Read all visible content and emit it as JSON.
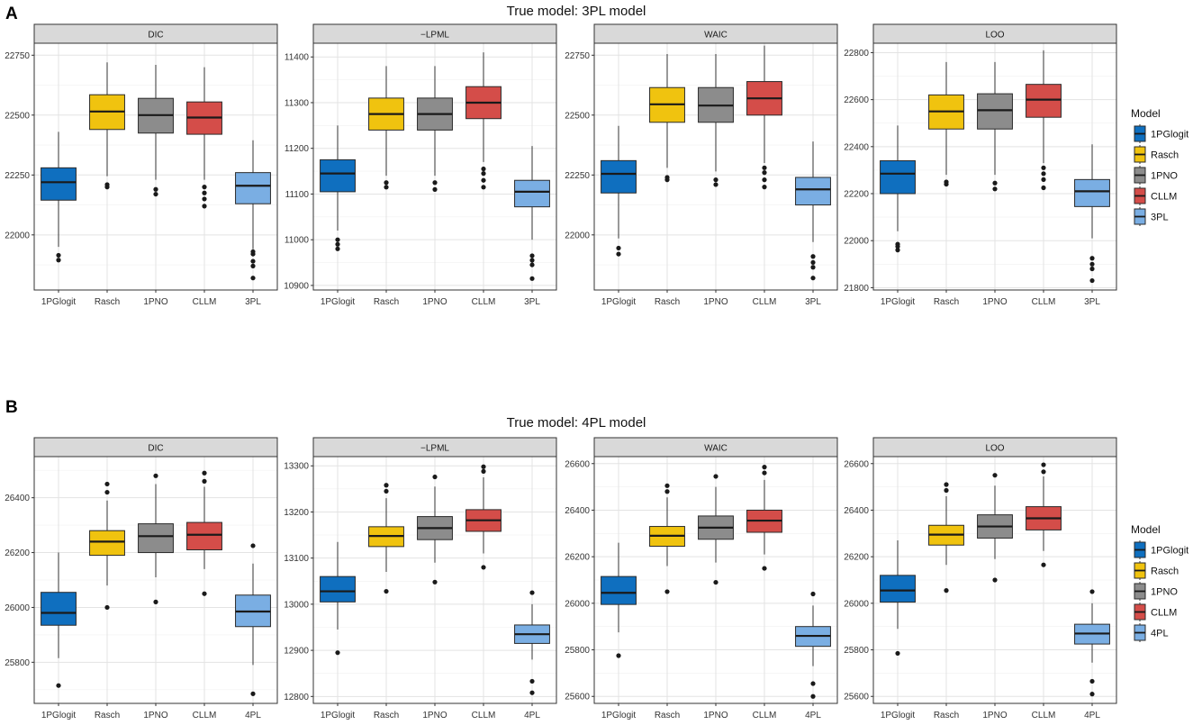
{
  "rows": [
    {
      "letter": "A",
      "title": "True model: 3PL model",
      "legend": {
        "title": "Model",
        "items": [
          {
            "label": "1PGlogit",
            "color": "#0f6fbf"
          },
          {
            "label": "Rasch",
            "color": "#f0c30f"
          },
          {
            "label": "1PNO",
            "color": "#8c8c8c"
          },
          {
            "label": "CLLM",
            "color": "#d44d49"
          },
          {
            "label": "3PL",
            "color": "#7aaee3"
          }
        ]
      }
    },
    {
      "letter": "B",
      "title": "True model: 4PL model",
      "legend": {
        "title": "Model",
        "items": [
          {
            "label": "1PGlogit",
            "color": "#0f6fbf"
          },
          {
            "label": "Rasch",
            "color": "#f0c30f"
          },
          {
            "label": "1PNO",
            "color": "#8c8c8c"
          },
          {
            "label": "CLLM",
            "color": "#d44d49"
          },
          {
            "label": "4PL",
            "color": "#7aaee3"
          }
        ]
      }
    }
  ],
  "chart_data": [
    {
      "type": "boxplot",
      "row": 0,
      "col": 0,
      "title": "DIC",
      "categories": [
        "1PGlogit",
        "Rasch",
        "1PNO",
        "CLLM",
        "3PL"
      ],
      "ylim": [
        21770,
        22800
      ],
      "yticks": [
        22000,
        22250,
        22500,
        22750
      ],
      "boxes": [
        {
          "lo": 21950,
          "q1": 22145,
          "med": 22220,
          "q3": 22280,
          "hi": 22430,
          "out": [
            21895,
            21915
          ]
        },
        {
          "lo": 22245,
          "q1": 22440,
          "med": 22515,
          "q3": 22585,
          "hi": 22720,
          "out": [
            22200,
            22210
          ]
        },
        {
          "lo": 22230,
          "q1": 22425,
          "med": 22500,
          "q3": 22570,
          "hi": 22710,
          "out": [
            22170,
            22190
          ]
        },
        {
          "lo": 22230,
          "q1": 22420,
          "med": 22490,
          "q3": 22555,
          "hi": 22700,
          "out": [
            22120,
            22150,
            22175,
            22200
          ]
        },
        {
          "lo": 21940,
          "q1": 22130,
          "med": 22205,
          "q3": 22260,
          "hi": 22395,
          "out": [
            21820,
            21870,
            21890,
            21920,
            21930
          ]
        }
      ]
    },
    {
      "type": "boxplot",
      "row": 0,
      "col": 1,
      "title": "−LPML",
      "categories": [
        "1PGlogit",
        "Rasch",
        "1PNO",
        "CLLM",
        "3PL"
      ],
      "ylim": [
        10890,
        11430
      ],
      "yticks": [
        10900,
        11000,
        11100,
        11200,
        11300,
        11400
      ],
      "boxes": [
        {
          "lo": 11020,
          "q1": 11105,
          "med": 11145,
          "q3": 11175,
          "hi": 11250,
          "out": [
            10980,
            10990,
            11000
          ]
        },
        {
          "lo": 11140,
          "q1": 11240,
          "med": 11275,
          "q3": 11310,
          "hi": 11380,
          "out": [
            11115,
            11125
          ]
        },
        {
          "lo": 11140,
          "q1": 11240,
          "med": 11275,
          "q3": 11310,
          "hi": 11380,
          "out": [
            11110,
            11125
          ]
        },
        {
          "lo": 11170,
          "q1": 11265,
          "med": 11300,
          "q3": 11335,
          "hi": 11410,
          "out": [
            11115,
            11130,
            11145,
            11155
          ]
        },
        {
          "lo": 11000,
          "q1": 11072,
          "med": 11105,
          "q3": 11130,
          "hi": 11205,
          "out": [
            10915,
            10945,
            10955,
            10965
          ]
        }
      ]
    },
    {
      "type": "boxplot",
      "row": 0,
      "col": 2,
      "title": "WAIC",
      "categories": [
        "1PGlogit",
        "Rasch",
        "1PNO",
        "CLLM",
        "3PL"
      ],
      "ylim": [
        21770,
        22800
      ],
      "yticks": [
        22000,
        22250,
        22500,
        22750
      ],
      "boxes": [
        {
          "lo": 21985,
          "q1": 22175,
          "med": 22255,
          "q3": 22310,
          "hi": 22455,
          "out": [
            21920,
            21945
          ]
        },
        {
          "lo": 22280,
          "q1": 22470,
          "med": 22545,
          "q3": 22615,
          "hi": 22755,
          "out": [
            22230,
            22240
          ]
        },
        {
          "lo": 22265,
          "q1": 22470,
          "med": 22540,
          "q3": 22615,
          "hi": 22755,
          "out": [
            22210,
            22230
          ]
        },
        {
          "lo": 22300,
          "q1": 22500,
          "med": 22570,
          "q3": 22640,
          "hi": 22790,
          "out": [
            22200,
            22230,
            22260,
            22280
          ]
        },
        {
          "lo": 21970,
          "q1": 22125,
          "med": 22190,
          "q3": 22240,
          "hi": 22390,
          "out": [
            21820,
            21865,
            21885,
            21910
          ]
        }
      ]
    },
    {
      "type": "boxplot",
      "row": 0,
      "col": 3,
      "title": "LOO",
      "categories": [
        "1PGlogit",
        "Rasch",
        "1PNO",
        "CLLM",
        "3PL"
      ],
      "ylim": [
        21790,
        22840
      ],
      "yticks": [
        21800,
        22000,
        22200,
        22400,
        22600,
        22800
      ],
      "boxes": [
        {
          "lo": 22040,
          "q1": 22200,
          "med": 22285,
          "q3": 22340,
          "hi": 22490,
          "out": [
            21960,
            21975,
            21985
          ]
        },
        {
          "lo": 22280,
          "q1": 22475,
          "med": 22550,
          "q3": 22620,
          "hi": 22760,
          "out": [
            22240,
            22250
          ]
        },
        {
          "lo": 22280,
          "q1": 22475,
          "med": 22555,
          "q3": 22625,
          "hi": 22760,
          "out": [
            22220,
            22245
          ]
        },
        {
          "lo": 22330,
          "q1": 22525,
          "med": 22600,
          "q3": 22665,
          "hi": 22810,
          "out": [
            22225,
            22260,
            22285,
            22310
          ]
        },
        {
          "lo": 22010,
          "q1": 22145,
          "med": 22210,
          "q3": 22260,
          "hi": 22410,
          "out": [
            21830,
            21880,
            21900,
            21925
          ]
        }
      ]
    },
    {
      "type": "boxplot",
      "row": 1,
      "col": 0,
      "title": "DIC",
      "categories": [
        "1PGlogit",
        "Rasch",
        "1PNO",
        "CLLM",
        "4PL"
      ],
      "ylim": [
        25650,
        26550
      ],
      "yticks": [
        25800,
        26000,
        26200,
        26400
      ],
      "boxes": [
        {
          "lo": 25815,
          "q1": 25935,
          "med": 25980,
          "q3": 26055,
          "hi": 26200,
          "out": [
            25715
          ]
        },
        {
          "lo": 26080,
          "q1": 26190,
          "med": 26240,
          "q3": 26280,
          "hi": 26390,
          "out": [
            26000,
            26420,
            26450
          ]
        },
        {
          "lo": 26110,
          "q1": 26200,
          "med": 26260,
          "q3": 26305,
          "hi": 26450,
          "out": [
            26020,
            26480
          ]
        },
        {
          "lo": 26140,
          "q1": 26210,
          "med": 26265,
          "q3": 26310,
          "hi": 26440,
          "out": [
            26050,
            26460,
            26490
          ]
        },
        {
          "lo": 25790,
          "q1": 25930,
          "med": 25985,
          "q3": 26045,
          "hi": 26160,
          "out": [
            25685,
            26225
          ]
        }
      ]
    },
    {
      "type": "boxplot",
      "row": 1,
      "col": 1,
      "title": "−LPML",
      "categories": [
        "1PGlogit",
        "Rasch",
        "1PNO",
        "CLLM",
        "4PL"
      ],
      "ylim": [
        12785,
        13320
      ],
      "yticks": [
        12800,
        12900,
        13000,
        13100,
        13200,
        13300
      ],
      "boxes": [
        {
          "lo": 12945,
          "q1": 13005,
          "med": 13028,
          "q3": 13060,
          "hi": 13135,
          "out": [
            12895
          ]
        },
        {
          "lo": 13070,
          "q1": 13125,
          "med": 13148,
          "q3": 13168,
          "hi": 13230,
          "out": [
            13028,
            13245,
            13258
          ]
        },
        {
          "lo": 13090,
          "q1": 13140,
          "med": 13165,
          "q3": 13190,
          "hi": 13255,
          "out": [
            13048,
            13276
          ]
        },
        {
          "lo": 13110,
          "q1": 13158,
          "med": 13182,
          "q3": 13205,
          "hi": 13275,
          "out": [
            13080,
            13288,
            13298
          ]
        },
        {
          "lo": 12880,
          "q1": 12915,
          "med": 12935,
          "q3": 12955,
          "hi": 13000,
          "out": [
            12808,
            12833,
            13025
          ]
        }
      ]
    },
    {
      "type": "boxplot",
      "row": 1,
      "col": 2,
      "title": "WAIC",
      "categories": [
        "1PGlogit",
        "Rasch",
        "1PNO",
        "CLLM",
        "4PL"
      ],
      "ylim": [
        25570,
        26630
      ],
      "yticks": [
        25600,
        25800,
        26000,
        26200,
        26400,
        26600
      ],
      "boxes": [
        {
          "lo": 25875,
          "q1": 25995,
          "med": 26045,
          "q3": 26115,
          "hi": 26260,
          "out": [
            25775
          ]
        },
        {
          "lo": 26160,
          "q1": 26245,
          "med": 26290,
          "q3": 26330,
          "hi": 26455,
          "out": [
            26050,
            26480,
            26505
          ]
        },
        {
          "lo": 26175,
          "q1": 26275,
          "med": 26325,
          "q3": 26375,
          "hi": 26500,
          "out": [
            26090,
            26545
          ]
        },
        {
          "lo": 26210,
          "q1": 26305,
          "med": 26355,
          "q3": 26400,
          "hi": 26530,
          "out": [
            26150,
            26560,
            26585
          ]
        },
        {
          "lo": 25730,
          "q1": 25815,
          "med": 25860,
          "q3": 25900,
          "hi": 25990,
          "out": [
            25600,
            25655,
            26040
          ]
        }
      ]
    },
    {
      "type": "boxplot",
      "row": 1,
      "col": 3,
      "title": "LOO",
      "categories": [
        "1PGlogit",
        "Rasch",
        "1PNO",
        "CLLM",
        "4PL"
      ],
      "ylim": [
        25570,
        26630
      ],
      "yticks": [
        25600,
        25800,
        26000,
        26200,
        26400,
        26600
      ],
      "boxes": [
        {
          "lo": 25890,
          "q1": 26005,
          "med": 26055,
          "q3": 26120,
          "hi": 26270,
          "out": [
            25785
          ]
        },
        {
          "lo": 26165,
          "q1": 26250,
          "med": 26295,
          "q3": 26335,
          "hi": 26460,
          "out": [
            26055,
            26485,
            26510
          ]
        },
        {
          "lo": 26190,
          "q1": 26280,
          "med": 26330,
          "q3": 26380,
          "hi": 26505,
          "out": [
            26100,
            26550
          ]
        },
        {
          "lo": 26225,
          "q1": 26315,
          "med": 26365,
          "q3": 26415,
          "hi": 26545,
          "out": [
            26165,
            26565,
            26595
          ]
        },
        {
          "lo": 25745,
          "q1": 25825,
          "med": 25870,
          "q3": 25910,
          "hi": 26000,
          "out": [
            25610,
            25665,
            26050
          ]
        }
      ]
    }
  ]
}
